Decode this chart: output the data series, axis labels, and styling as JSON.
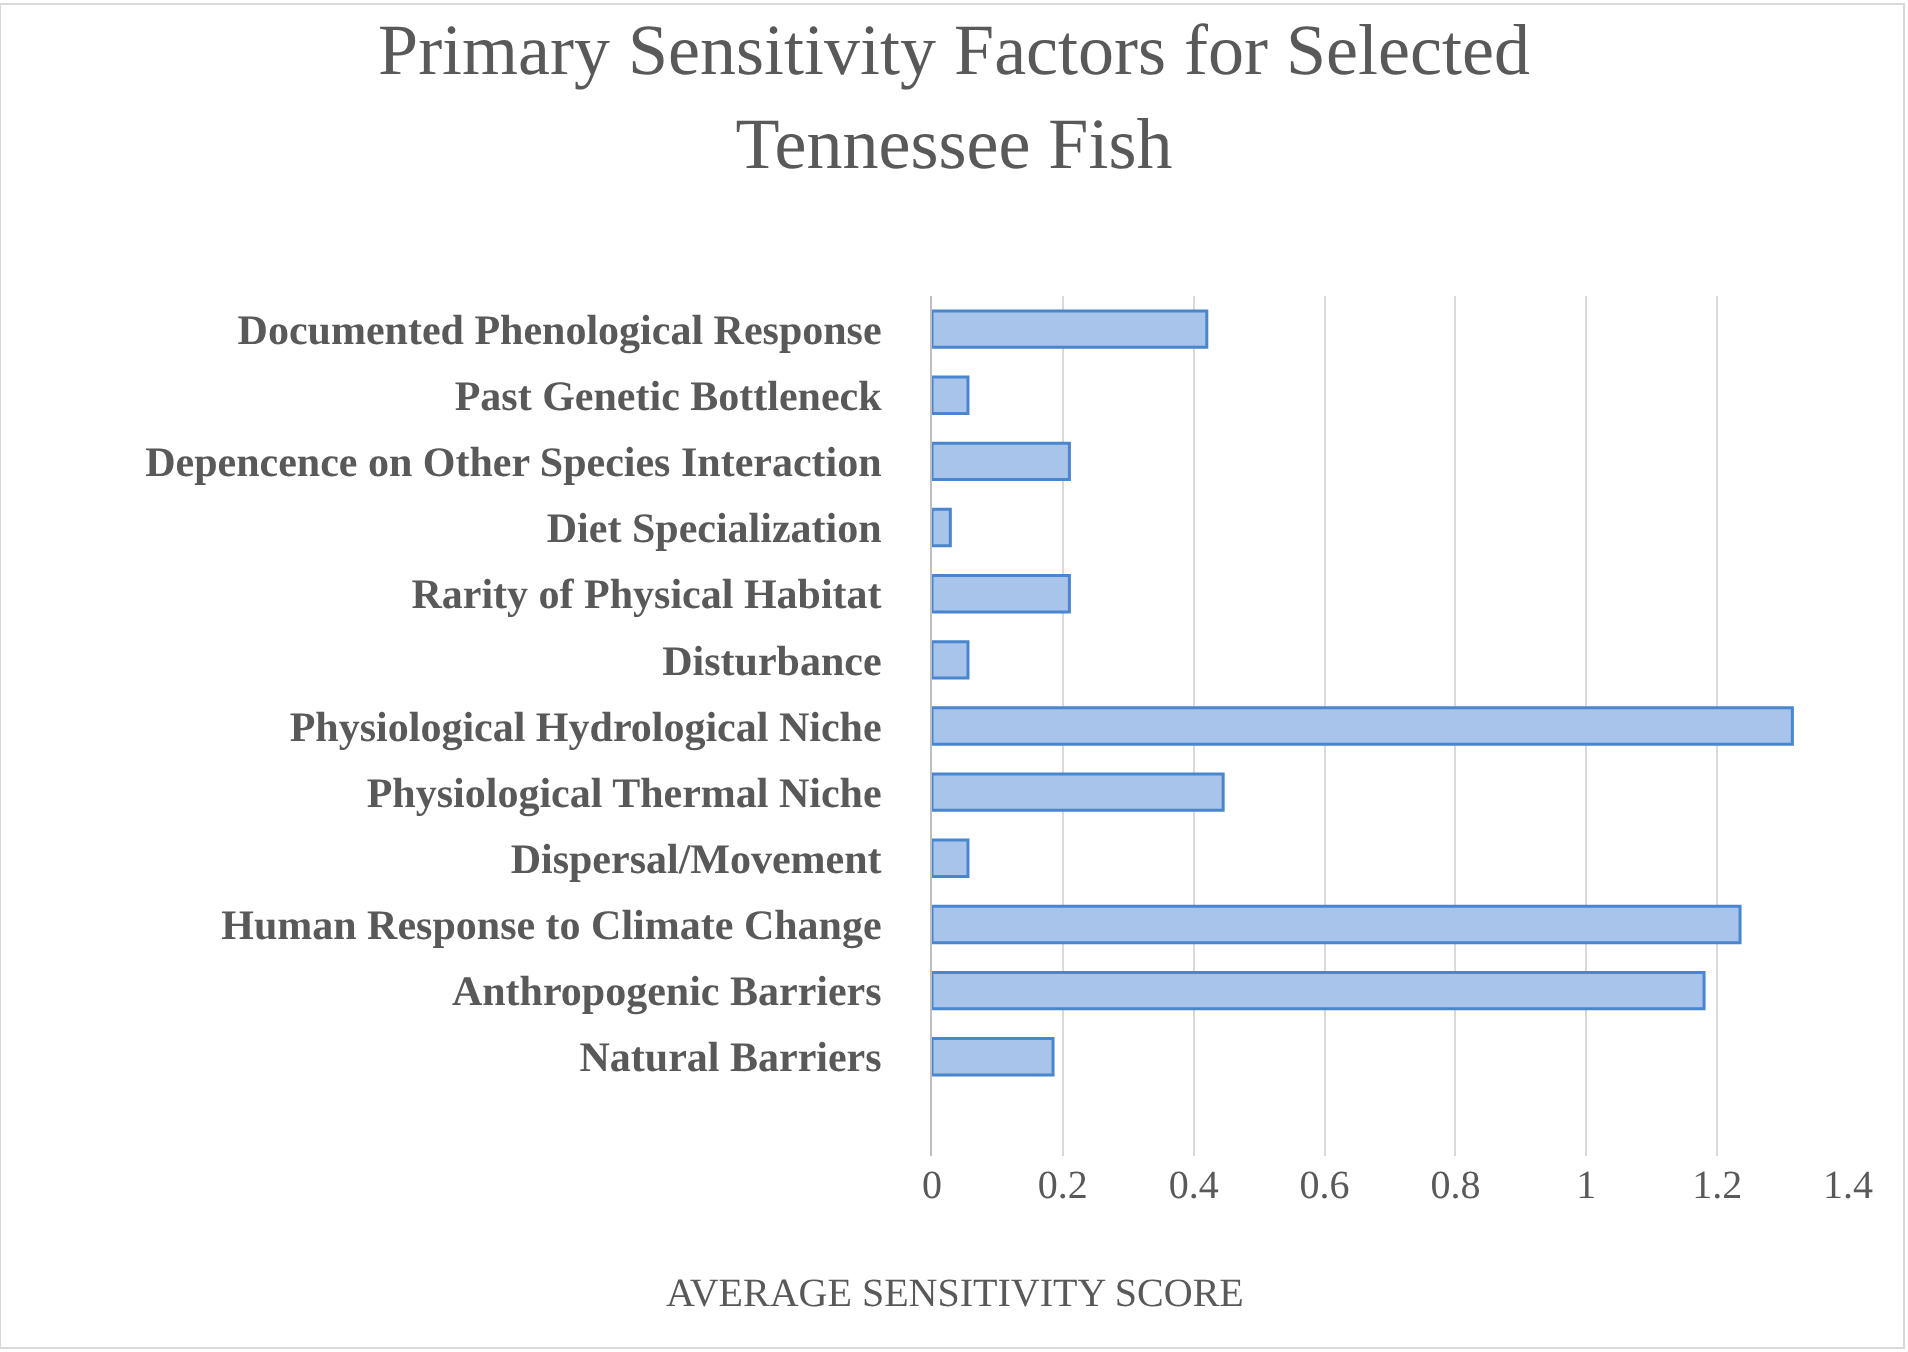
{
  "chart_data": {
    "type": "bar",
    "orientation": "horizontal",
    "title": "Primary Sensitivity Factors for Selected Tennessee Fish",
    "xlabel": "AVERAGE SENSITIVITY SCORE",
    "categories": [
      "Documented Phenological Response",
      "Past Genetic Bottleneck",
      "Depencence on Other Species Interaction",
      "Diet Specialization",
      "Rarity of Physical Habitat",
      "Disturbance",
      "Physiological Hydrological Niche",
      "Physiological Thermal Niche",
      "Dispersal/Movement",
      "Human Response to Climate Change",
      "Anthropogenic Barriers",
      "Natural Barriers"
    ],
    "values": [
      0.42,
      0.055,
      0.21,
      0.028,
      0.21,
      0.055,
      1.315,
      0.445,
      0.055,
      1.235,
      1.18,
      0.185
    ],
    "color": "#a9c4eb",
    "xlim": [
      0,
      1.4
    ],
    "xticks": [
      0,
      0.2,
      0.4,
      0.6,
      0.8,
      1,
      1.2,
      1.4
    ],
    "grid": "x"
  }
}
